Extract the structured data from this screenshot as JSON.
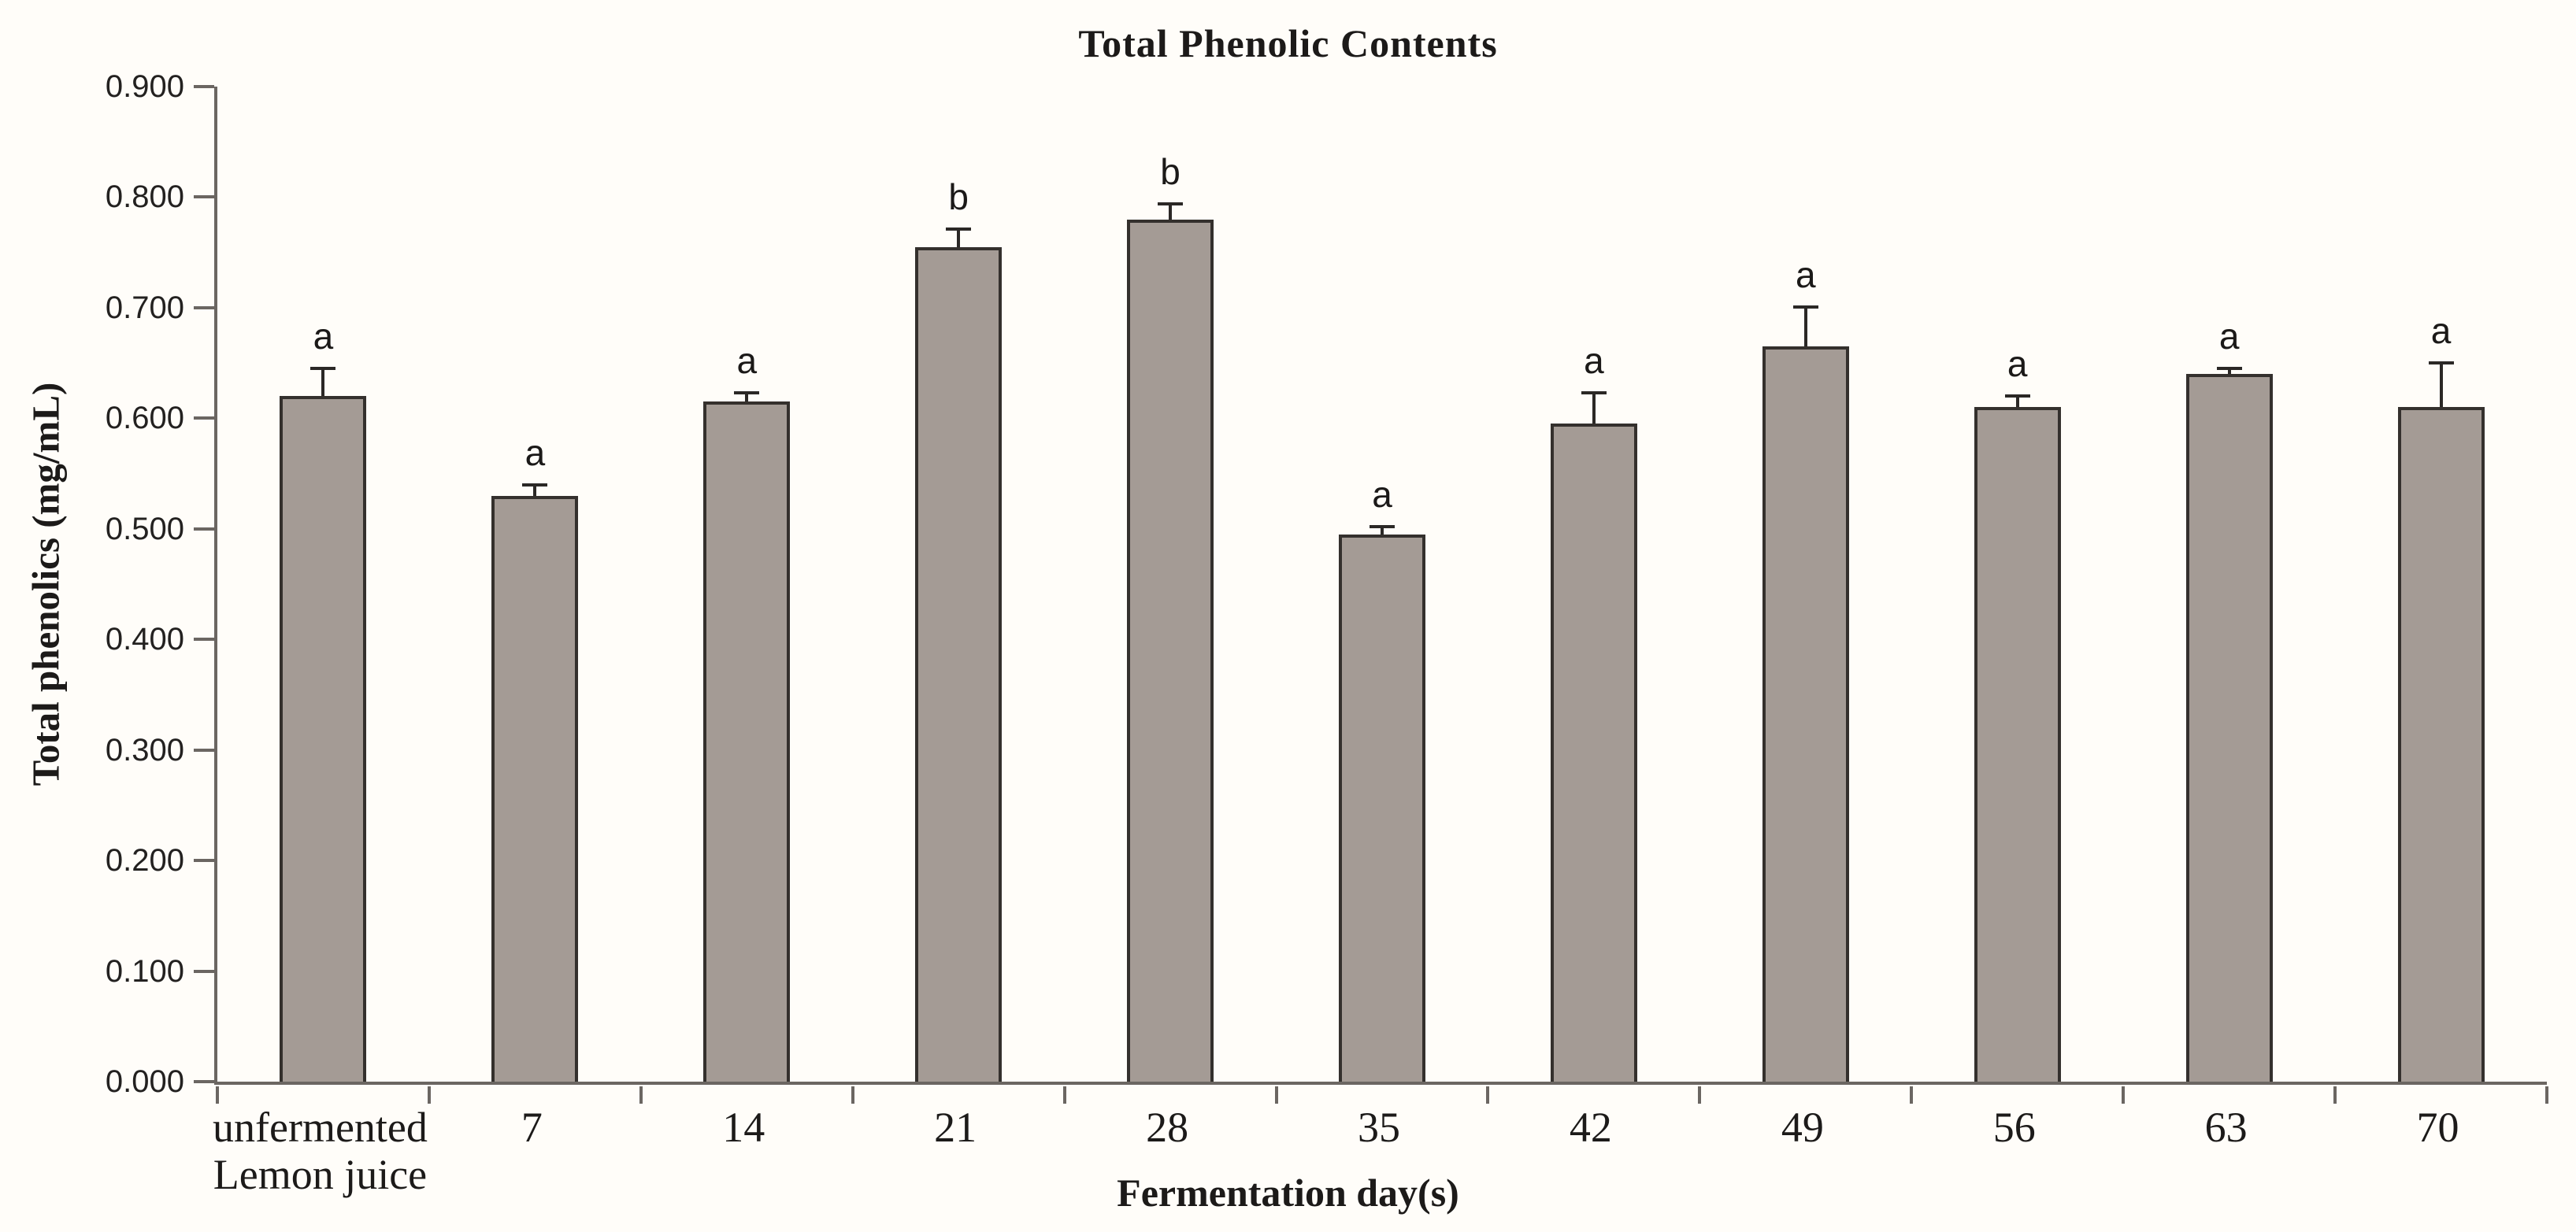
{
  "chart_data": {
    "type": "bar",
    "title": "Total Phenolic Contents",
    "xlabel": "Fermentation day(s)",
    "ylabel": "Total phenolics (mg/mL)",
    "ylim": [
      0,
      0.9
    ],
    "ytick_values": [
      0,
      0.1,
      0.2,
      0.3,
      0.4,
      0.5,
      0.6,
      0.7,
      0.8,
      0.9
    ],
    "ytick_labels": [
      "0.000",
      "0.100",
      "0.200",
      "0.300",
      "0.400",
      "0.500",
      "0.600",
      "0.700",
      "0.800",
      "0.900"
    ],
    "grid": false,
    "legend": "none",
    "categories": [
      "unfermented Lemon juice",
      "7",
      "14",
      "21",
      "28",
      "35",
      "42",
      "49",
      "56",
      "63",
      "70"
    ],
    "category_label_lines": [
      [
        "unfermented",
        "Lemon juice"
      ],
      [
        "7"
      ],
      [
        "14"
      ],
      [
        "21"
      ],
      [
        "28"
      ],
      [
        "35"
      ],
      [
        "42"
      ],
      [
        "49"
      ],
      [
        "56"
      ],
      [
        "63"
      ],
      [
        "70"
      ]
    ],
    "series": [
      {
        "name": "Total phenolics (mg/mL)",
        "values": [
          0.62,
          0.53,
          0.615,
          0.755,
          0.78,
          0.495,
          0.595,
          0.665,
          0.61,
          0.64,
          0.61
        ],
        "errors_plus": [
          0.025,
          0.01,
          0.008,
          0.016,
          0.014,
          0.007,
          0.028,
          0.036,
          0.01,
          0.005,
          0.04
        ],
        "sig_letters": [
          "a",
          "a",
          "a",
          "b",
          "b",
          "a",
          "a",
          "a",
          "a",
          "a",
          "a"
        ]
      }
    ],
    "colors": {
      "bar_fill": "#a49b95",
      "bar_border": "#34302d",
      "error_bar": "#2b2826",
      "axis": "#6b6662",
      "text": "#1c1a19",
      "background": "#fffdf9"
    }
  }
}
